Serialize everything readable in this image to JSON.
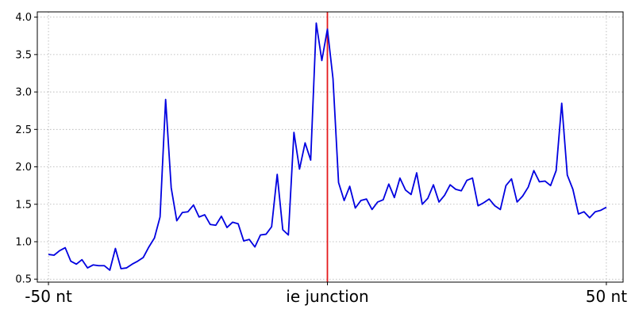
{
  "chart_data": {
    "type": "line",
    "title": "",
    "xlabel": "",
    "ylabel": "",
    "xlim": [
      -52,
      53
    ],
    "ylim": [
      0.46,
      4.07
    ],
    "grid": true,
    "x_ticks": [
      {
        "value": -50,
        "label": "-50 nt"
      },
      {
        "value": 0,
        "label": "ie junction"
      },
      {
        "value": 50,
        "label": "50 nt"
      }
    ],
    "y_ticks": [
      0.5,
      1.0,
      1.5,
      2.0,
      2.5,
      3.0,
      3.5,
      4.0
    ],
    "y_tick_labels": [
      "0.5",
      "1.0",
      "1.5",
      "2.0",
      "2.5",
      "3.0",
      "3.5",
      "4.0"
    ],
    "vline": {
      "x": 0,
      "color": "#e41a1c"
    },
    "series": [
      {
        "color": "#0000e0",
        "x": [
          -50,
          -49,
          -48,
          -47,
          -46,
          -45,
          -44,
          -43,
          -42,
          -41,
          -40,
          -39,
          -38,
          -37,
          -36,
          -35,
          -34,
          -33,
          -32,
          -31,
          -30,
          -29,
          -28,
          -27,
          -26,
          -25,
          -24,
          -23,
          -22,
          -21,
          -20,
          -19,
          -18,
          -17,
          -16,
          -15,
          -14,
          -13,
          -12,
          -11,
          -10,
          -9,
          -8,
          -7,
          -6,
          -5,
          -4,
          -3,
          -2,
          -1,
          0,
          1,
          2,
          3,
          4,
          5,
          6,
          7,
          8,
          9,
          10,
          11,
          12,
          13,
          14,
          15,
          16,
          17,
          18,
          19,
          20,
          21,
          22,
          23,
          24,
          25,
          26,
          27,
          28,
          29,
          30,
          31,
          32,
          33,
          34,
          35,
          36,
          37,
          38,
          39,
          40,
          41,
          42,
          43,
          44,
          45,
          46,
          47,
          48,
          49,
          50
        ],
        "y": [
          0.83,
          0.82,
          0.88,
          0.92,
          0.74,
          0.7,
          0.76,
          0.65,
          0.69,
          0.68,
          0.68,
          0.62,
          0.91,
          0.64,
          0.65,
          0.7,
          0.74,
          0.79,
          0.93,
          1.05,
          1.33,
          2.9,
          1.72,
          1.28,
          1.39,
          1.4,
          1.49,
          1.33,
          1.36,
          1.23,
          1.22,
          1.34,
          1.19,
          1.26,
          1.24,
          1.01,
          1.03,
          0.93,
          1.09,
          1.1,
          1.2,
          1.9,
          1.16,
          1.09,
          2.46,
          1.97,
          2.32,
          2.09,
          3.92,
          3.42,
          3.84,
          3.18,
          1.79,
          1.55,
          1.74,
          1.45,
          1.55,
          1.57,
          1.43,
          1.53,
          1.56,
          1.77,
          1.59,
          1.85,
          1.69,
          1.63,
          1.92,
          1.5,
          1.58,
          1.76,
          1.53,
          1.62,
          1.76,
          1.7,
          1.68,
          1.82,
          1.85,
          1.48,
          1.52,
          1.57,
          1.48,
          1.43,
          1.75,
          1.84,
          1.53,
          1.61,
          1.73,
          1.95,
          1.8,
          1.81,
          1.75,
          1.95,
          2.85,
          1.89,
          1.7,
          1.37,
          1.4,
          1.32,
          1.4,
          1.42,
          1.46
        ]
      }
    ]
  }
}
